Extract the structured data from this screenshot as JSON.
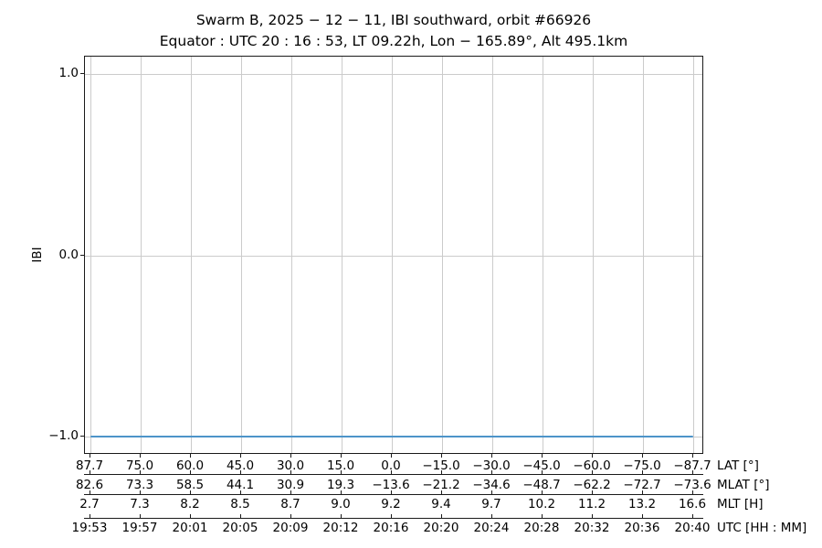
{
  "chart_data": {
    "type": "line",
    "title": "Swarm B,  2025 − 12 − 11,  IBI southward,  orbit #66926",
    "subtitle": "Equator :  UTC 20 : 16 : 53,  LT 09.22h,  Lon − 165.89°,  Alt 495.1km",
    "ylabel": "IBI",
    "ylim": [
      -1.1,
      1.1
    ],
    "grid": true,
    "legend_position": "none",
    "yticks": [
      {
        "value": 1.0,
        "label": "1.0"
      },
      {
        "value": 0.0,
        "label": "0.0"
      },
      {
        "value": -1.0,
        "label": "−1.0"
      }
    ],
    "series": [
      {
        "name": "IBI",
        "color": "#4d94c9",
        "linewidth": 2.5,
        "y": [
          -1,
          -1,
          -1,
          -1,
          -1,
          -1,
          -1,
          -1,
          -1,
          -1,
          -1,
          -1,
          -1
        ]
      }
    ],
    "x_axes": [
      {
        "label": "LAT [°]",
        "ticks": [
          "87.7",
          "75.0",
          "60.0",
          "45.0",
          "30.0",
          "15.0",
          "0.0",
          "−15.0",
          "−30.0",
          "−45.0",
          "−60.0",
          "−75.0",
          "−87.7"
        ]
      },
      {
        "label": "MLAT [°]",
        "ticks": [
          "82.6",
          "73.3",
          "58.5",
          "44.1",
          "30.9",
          "19.3",
          "−13.6",
          "−21.2",
          "−34.6",
          "−48.7",
          "−62.2",
          "−72.7",
          "−73.6"
        ]
      },
      {
        "label": "MLT [H]",
        "ticks": [
          "2.7",
          "7.3",
          "8.2",
          "8.5",
          "8.7",
          "9.0",
          "9.2",
          "9.4",
          "9.7",
          "10.2",
          "11.2",
          "13.2",
          "16.6"
        ]
      },
      {
        "label": "UTC [HH : MM]",
        "ticks": [
          "19:53",
          "19:57",
          "20:01",
          "20:05",
          "20:09",
          "20:12",
          "20:16",
          "20:20",
          "20:24",
          "20:28",
          "20:32",
          "20:36",
          "20:40"
        ]
      }
    ],
    "colors": {
      "line": "#4d94c9",
      "grid": "#cbcbcb",
      "spine": "#1a1a1a",
      "text": "#000000",
      "background": "#ffffff"
    }
  }
}
